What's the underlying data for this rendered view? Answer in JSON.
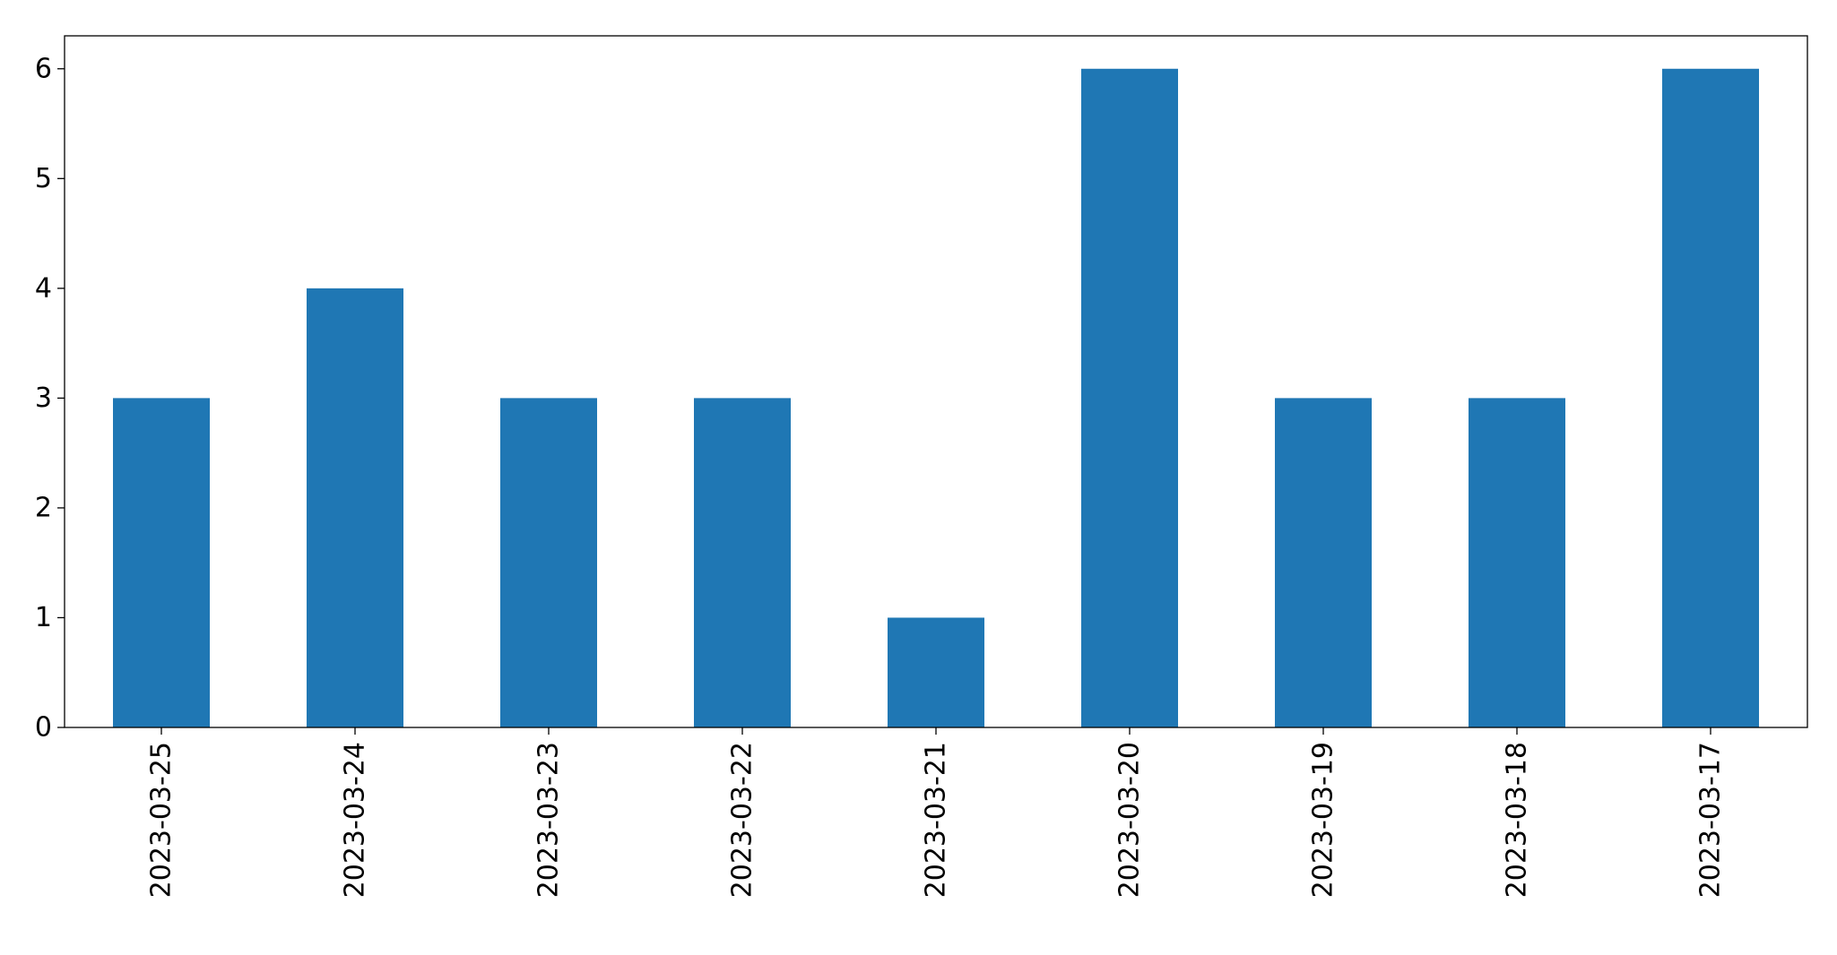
{
  "chart_data": {
    "type": "bar",
    "title": "",
    "xlabel": "",
    "ylabel": "",
    "categories": [
      "2023-03-25",
      "2023-03-24",
      "2023-03-23",
      "2023-03-22",
      "2023-03-21",
      "2023-03-20",
      "2023-03-19",
      "2023-03-18",
      "2023-03-17"
    ],
    "values": [
      3,
      4,
      3,
      3,
      1,
      6,
      3,
      3,
      6
    ],
    "ylim": [
      0,
      6.3
    ],
    "yticks": [
      0,
      1,
      2,
      3,
      4,
      5,
      6
    ],
    "bar_color": "#1f77b4",
    "grid": false,
    "legend": "none"
  }
}
